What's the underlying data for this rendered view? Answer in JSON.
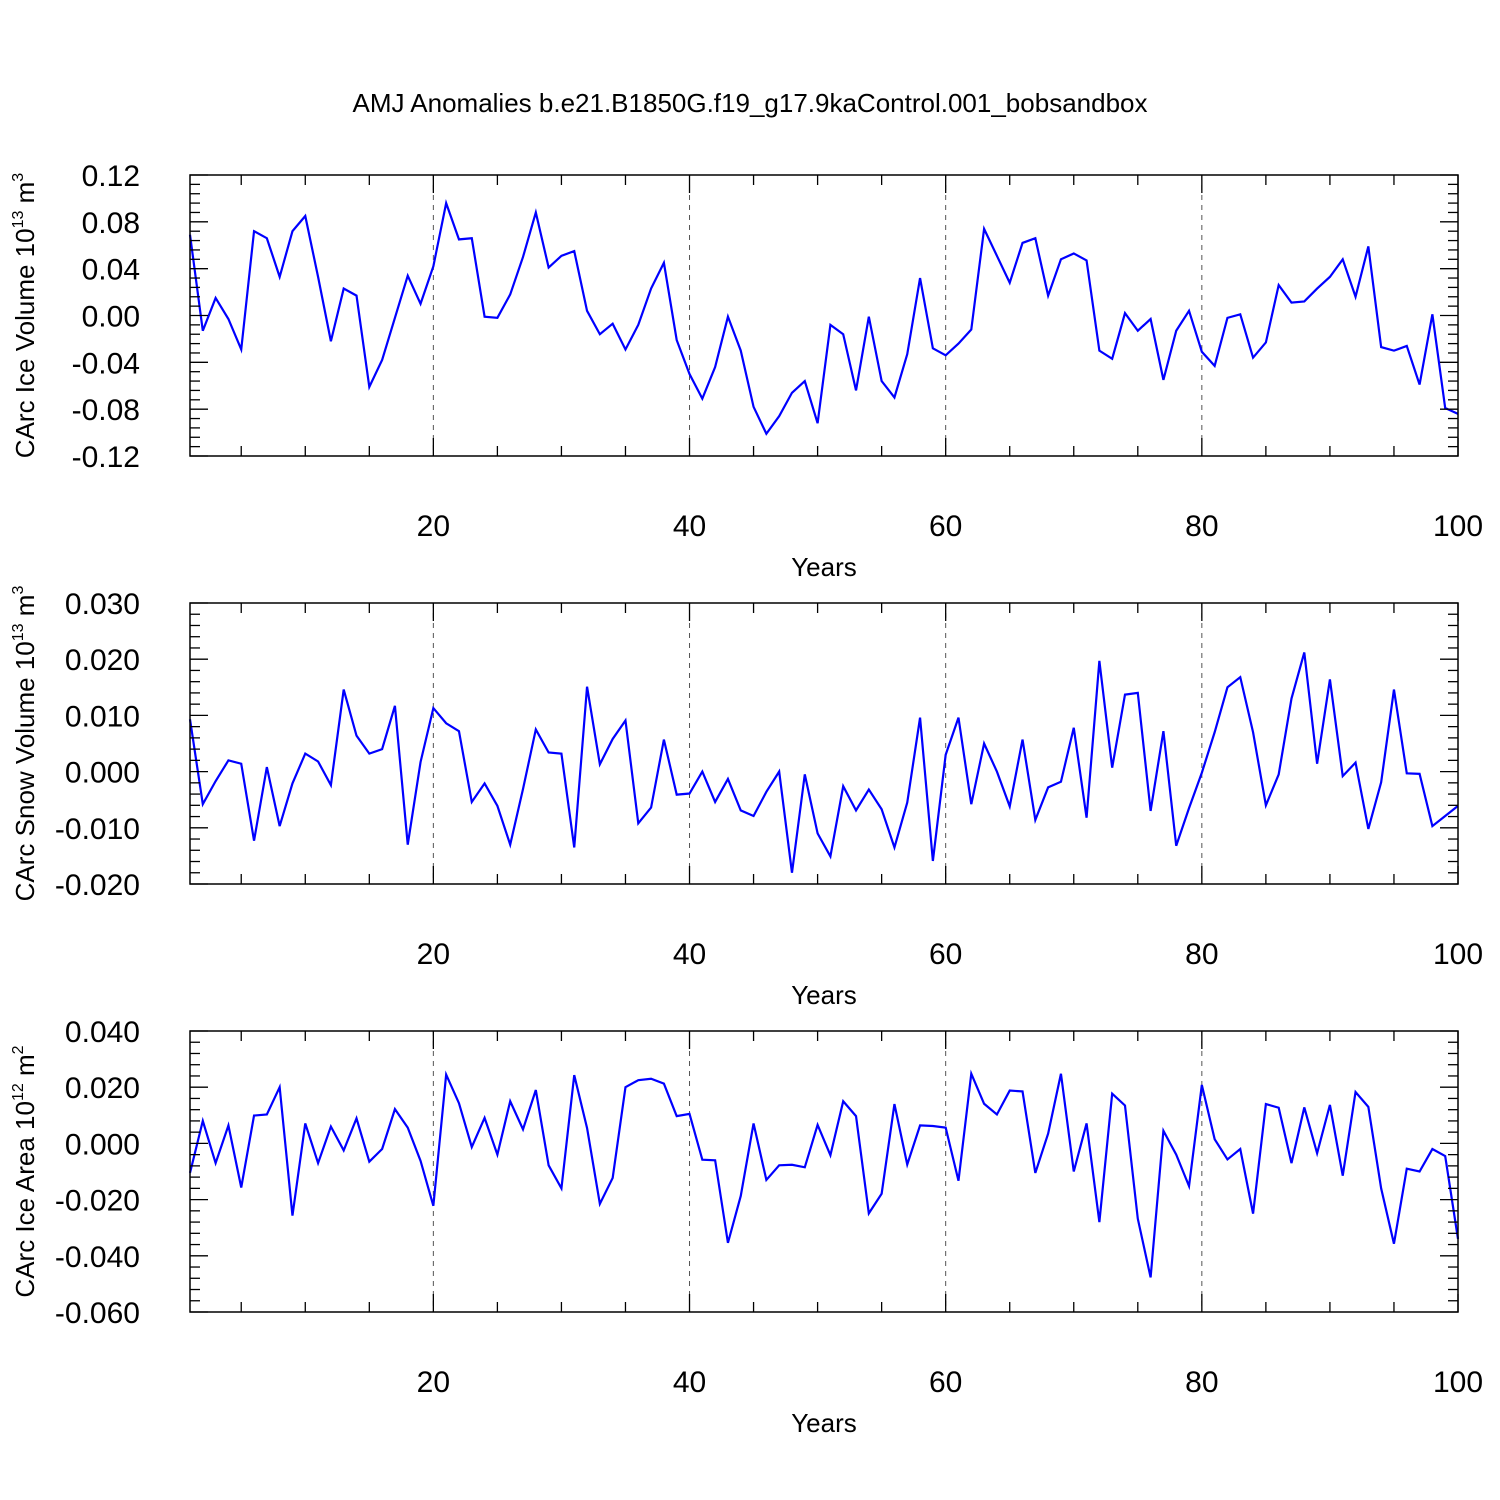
{
  "title": "AMJ Anomalies b.e21.B1850G.f19_g17.9kaControl.001_bobsandbox",
  "chart_data": [
    {
      "type": "line",
      "xlabel": "Years",
      "ylabel": {
        "base": "CArc Ice Volume 10",
        "exp": "13",
        "unit": " m",
        "unit_exp": "3"
      },
      "xlim": [
        1,
        100
      ],
      "ylim": [
        -0.12,
        0.12
      ],
      "yticks": [
        "-0.12",
        "-0.08",
        "-0.04",
        "0.00",
        "0.04",
        "0.08",
        "0.12"
      ],
      "xticks": [
        "20",
        "40",
        "60",
        "80",
        "100"
      ],
      "grid_x": [
        20,
        40,
        60,
        80
      ],
      "color": "#0000ff",
      "y": [
        0.069,
        -0.013,
        0.015,
        -0.003,
        -0.029,
        0.072,
        0.066,
        0.033,
        0.072,
        0.085,
        0.033,
        -0.022,
        0.023,
        0.017,
        -0.061,
        -0.038,
        -0.002,
        0.034,
        0.01,
        0.042,
        0.096,
        0.065,
        0.066,
        -0.001,
        -0.002,
        0.018,
        0.05,
        0.088,
        0.041,
        0.051,
        0.055,
        0.004,
        -0.016,
        -0.007,
        -0.029,
        -0.008,
        0.023,
        0.045,
        -0.021,
        -0.05,
        -0.071,
        -0.044,
        -0.001,
        -0.03,
        -0.078,
        -0.101,
        -0.086,
        -0.066,
        -0.056,
        -0.092,
        -0.008,
        -0.016,
        -0.064,
        -0.001,
        -0.056,
        -0.07,
        -0.033,
        0.032,
        -0.028,
        -0.034,
        -0.024,
        -0.012,
        0.074,
        0.051,
        0.028,
        0.062,
        0.066,
        0.017,
        0.048,
        0.053,
        0.047,
        -0.03,
        -0.037,
        0.002,
        -0.013,
        -0.003,
        -0.055,
        -0.013,
        0.004,
        -0.031,
        -0.043,
        -0.002,
        0.001,
        -0.036,
        -0.023,
        0.026,
        0.011,
        0.012,
        0.023,
        0.033,
        0.048,
        0.016,
        0.059,
        -0.027,
        -0.03,
        -0.026,
        -0.059,
        0.001,
        -0.079,
        -0.084
      ]
    },
    {
      "type": "line",
      "xlabel": "Years",
      "ylabel": {
        "base": "CArc Snow Volume 10",
        "exp": "13",
        "unit": " m",
        "unit_exp": "3"
      },
      "xlim": [
        1,
        100
      ],
      "ylim": [
        -0.02,
        0.03
      ],
      "yticks": [
        "-0.020",
        "-0.010",
        "0.000",
        "0.010",
        "0.020",
        "0.030"
      ],
      "xticks": [
        "20",
        "40",
        "60",
        "80",
        "100"
      ],
      "grid_x": [
        20,
        40,
        60,
        80
      ],
      "color": "#0000ff",
      "y": [
        0.0093,
        -0.0058,
        -0.0017,
        0.002,
        0.0014,
        -0.0123,
        0.0008,
        -0.0097,
        -0.0021,
        0.0032,
        0.0018,
        -0.0024,
        0.0146,
        0.0064,
        0.0032,
        0.004,
        0.0117,
        -0.013,
        0.0017,
        0.0113,
        0.0086,
        0.0072,
        -0.0054,
        -0.0021,
        -0.0061,
        -0.013,
        -0.0031,
        0.0075,
        0.0034,
        0.0032,
        -0.0135,
        0.0151,
        0.0013,
        0.0058,
        0.0091,
        -0.0092,
        -0.0064,
        0.0057,
        -0.0041,
        -0.0039,
        0.0,
        -0.0054,
        -0.0013,
        -0.0069,
        -0.0079,
        -0.0036,
        0.0,
        -0.018,
        -0.0005,
        -0.011,
        -0.0151,
        -0.0026,
        -0.0069,
        -0.0032,
        -0.0067,
        -0.0135,
        -0.0055,
        0.0096,
        -0.0159,
        0.003,
        0.0096,
        -0.0058,
        0.005,
        0.0,
        -0.0062,
        0.0057,
        -0.0086,
        -0.0028,
        -0.0018,
        0.0078,
        -0.0082,
        0.0197,
        0.0007,
        0.0137,
        0.014,
        -0.007,
        0.0072,
        -0.0132,
        -0.0065,
        -0.0002,
        0.007,
        0.015,
        0.0168,
        0.007,
        -0.006,
        -0.0005,
        0.013,
        0.0212,
        0.0014,
        0.0164,
        -0.0008,
        0.0016,
        -0.0102,
        -0.0019,
        0.0146,
        -0.0003,
        -0.0004,
        -0.0097,
        -0.0079,
        -0.0061
      ]
    },
    {
      "type": "line",
      "xlabel": "Years",
      "ylabel": {
        "base": "CArc Ice Area 10",
        "exp": "12",
        "unit": " m",
        "unit_exp": "2"
      },
      "xlim": [
        1,
        100
      ],
      "ylim": [
        -0.06,
        0.04
      ],
      "yticks": [
        "-0.060",
        "-0.040",
        "-0.020",
        "0.000",
        "0.020",
        "0.040"
      ],
      "xticks": [
        "20",
        "40",
        "60",
        "80",
        "100"
      ],
      "grid_x": [
        20,
        40,
        60,
        80
      ],
      "color": "#0000ff",
      "y": [
        -0.0105,
        0.008,
        -0.007,
        0.0064,
        -0.0157,
        0.0099,
        0.0103,
        0.02,
        -0.0257,
        0.0071,
        -0.007,
        0.006,
        -0.0025,
        0.0089,
        -0.0065,
        -0.002,
        0.0122,
        0.0056,
        -0.0062,
        -0.0222,
        0.0245,
        0.0143,
        -0.0013,
        0.0091,
        -0.004,
        0.015,
        0.005,
        0.019,
        -0.0078,
        -0.016,
        0.0243,
        0.0055,
        -0.0215,
        -0.0123,
        0.02,
        0.0225,
        0.023,
        0.0213,
        0.0097,
        0.0105,
        -0.0058,
        -0.006,
        -0.0354,
        -0.0187,
        0.0071,
        -0.013,
        -0.0078,
        -0.0076,
        -0.0085,
        0.0066,
        -0.0042,
        0.015,
        0.0097,
        -0.0249,
        -0.0179,
        0.014,
        -0.0075,
        0.0064,
        0.0062,
        0.0056,
        -0.0133,
        0.0248,
        0.0141,
        0.0103,
        0.0188,
        0.0185,
        -0.0105,
        0.0035,
        0.0248,
        -0.01,
        0.0071,
        -0.028,
        0.0177,
        0.0135,
        -0.0268,
        -0.0477,
        0.0045,
        -0.004,
        -0.0152,
        0.0208,
        0.0015,
        -0.0057,
        -0.002,
        -0.025,
        0.014,
        0.0127,
        -0.007,
        0.0128,
        -0.0035,
        0.0137,
        -0.0115,
        0.0183,
        0.013,
        -0.016,
        -0.0357,
        -0.009,
        -0.01,
        -0.002,
        -0.0045,
        -0.034
      ]
    }
  ]
}
